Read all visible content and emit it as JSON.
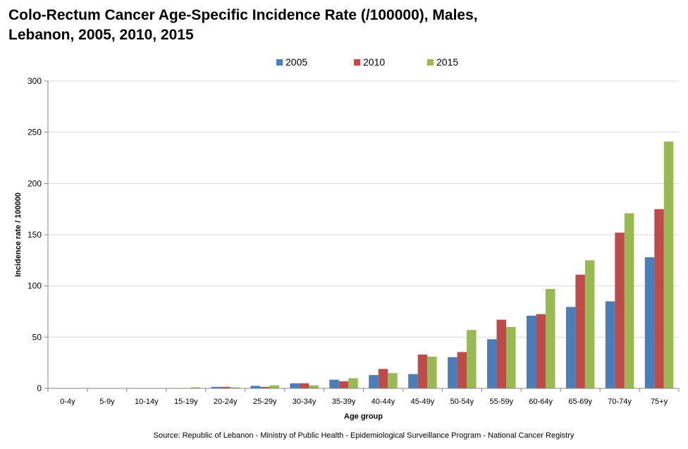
{
  "title_line1": "Colo-Rectum Cancer Age-Specific Incidence Rate (/100000),  Males,",
  "title_line2": "Lebanon, 2005, 2010, 2015",
  "source": "Source: Republic of Lebanon - Ministry of Public Health - Epidemiological Surveillance Program - National Cancer Registry",
  "chart_data": {
    "type": "bar",
    "title": "Colo-Rectum Cancer Age-Specific Incidence Rate (/100000),  Males, Lebanon, 2005, 2010, 2015",
    "xlabel": "Age group",
    "ylabel": "Incidence  rate / 100000",
    "ylim": [
      0,
      300
    ],
    "yticks": [
      0,
      50,
      100,
      150,
      200,
      250,
      300
    ],
    "grid": true,
    "legend_position": "top-center",
    "categories": [
      "0-4y",
      "5-9y",
      "10-14y",
      "15-19y",
      "20-24y",
      "25-29y",
      "30-34y",
      "35-39y",
      "40-44y",
      "45-49y",
      "50-54y",
      "55-59y",
      "60-64y",
      "65-69y",
      "70-74y",
      "75+y"
    ],
    "series": [
      {
        "name": "2005",
        "color": "#4a7ebb",
        "values": [
          0,
          0,
          0,
          0,
          1.5,
          2.5,
          5,
          8.5,
          13,
          14,
          30.5,
          48,
          71,
          79.5,
          85,
          128
        ]
      },
      {
        "name": "2010",
        "color": "#be4b48",
        "values": [
          0,
          0,
          0,
          0,
          1.5,
          1.5,
          5,
          7,
          19,
          33,
          35.5,
          67,
          72.5,
          111,
          152,
          175
        ]
      },
      {
        "name": "2015",
        "color": "#98b954",
        "values": [
          0,
          0,
          0,
          1,
          1,
          3,
          3,
          10,
          15,
          31,
          57,
          60,
          97,
          125,
          171,
          241
        ]
      }
    ]
  }
}
